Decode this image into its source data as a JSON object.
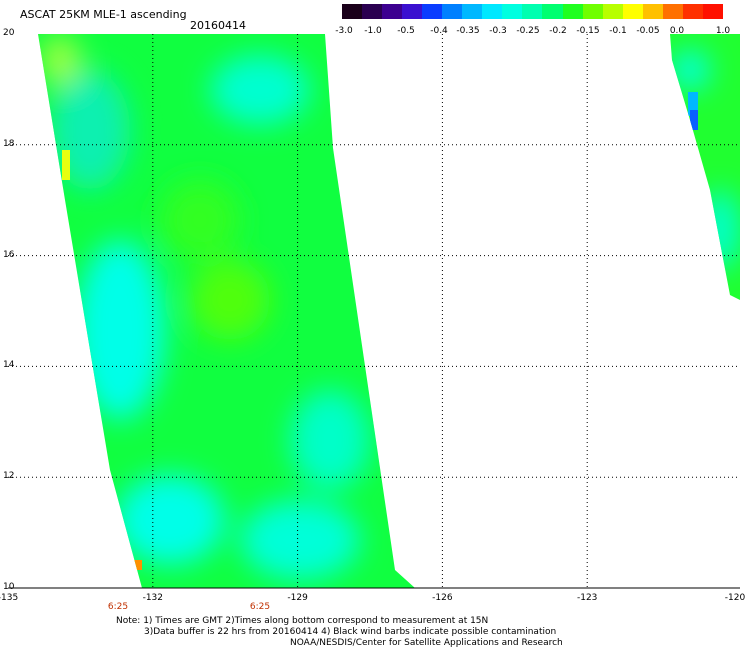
{
  "header": {
    "title": "ASCAT 25KM MLE-1 ascending",
    "date": "20160414"
  },
  "colorbar": {
    "labels": [
      "-3.0",
      "-1.0",
      "-0.5",
      "-0.4",
      "-0.35",
      "-0.3",
      "-0.25",
      "-0.2",
      "-0.15",
      "-0.1",
      "-0.05",
      "0.0",
      "1.0"
    ],
    "colors": [
      "#1a001a",
      "#2a0050",
      "#3c0090",
      "#3a10d0",
      "#0a3cff",
      "#0080ff",
      "#00b8ff",
      "#00e8ff",
      "#00ffe0",
      "#00ffb0",
      "#00ff70",
      "#20ff20",
      "#70ff00",
      "#b8ff00",
      "#ffff00",
      "#ffc000",
      "#ff7000",
      "#ff3000",
      "#ff1000"
    ]
  },
  "map": {
    "lat_labels": [
      "20",
      "18",
      "16",
      "14",
      "12",
      "10"
    ],
    "lon_labels": [
      "-135",
      "-132",
      "-129",
      "-126",
      "-123",
      "-120"
    ],
    "time_labels": [
      "6:25",
      "6:25"
    ],
    "lon_range": [
      -135,
      -120
    ],
    "lat_range": [
      10,
      20
    ]
  },
  "note": {
    "line1": "Note: 1) Times are GMT 2)Times along bottom correspond to measurement at 15N",
    "line2": "3)Data buffer is 22 hrs from 20160414 4) Black wind barbs indicate possible contamination",
    "line3": "NOAA/NESDIS/Center for Satellite Applications and Research"
  }
}
